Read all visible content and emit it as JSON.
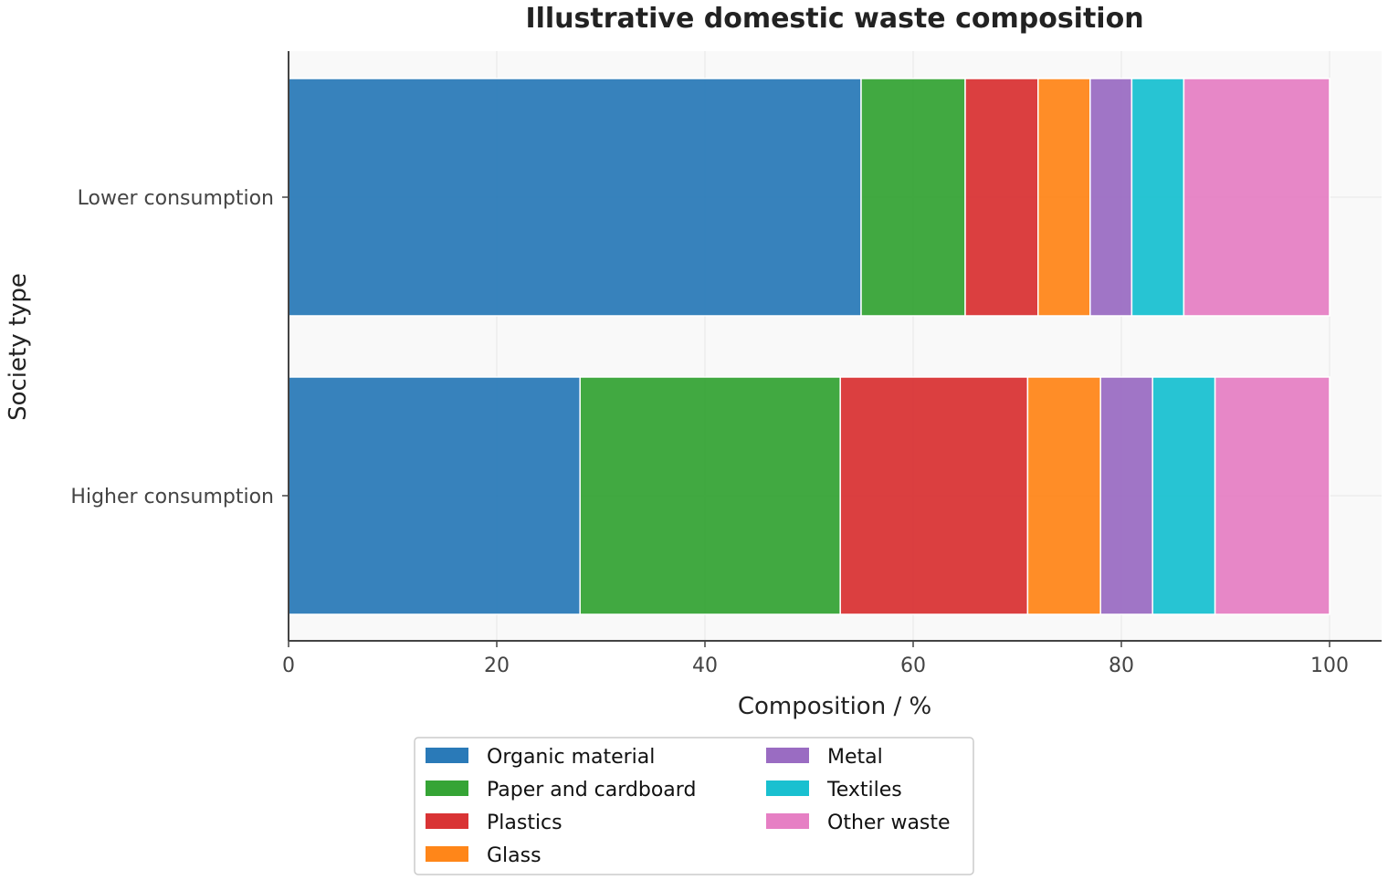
{
  "chart_data": {
    "type": "bar",
    "orientation": "horizontal",
    "stacked": true,
    "title": "Illustrative domestic waste composition",
    "xlabel": "Composition / %",
    "ylabel": "Society type",
    "xlim": [
      0,
      105
    ],
    "xticks": [
      0,
      20,
      40,
      60,
      80,
      100
    ],
    "grid": true,
    "legend_position": "bottom-center",
    "categories": [
      "Lower consumption",
      "Higher consumption"
    ],
    "series": [
      {
        "name": "Organic material",
        "color": "#2a7ab8",
        "values": [
          55,
          28
        ]
      },
      {
        "name": "Paper and cardboard",
        "color": "#35a435",
        "values": [
          10,
          25
        ]
      },
      {
        "name": "Plastics",
        "color": "#d93334",
        "values": [
          7,
          18
        ]
      },
      {
        "name": "Glass",
        "color": "#ff8619",
        "values": [
          5,
          7
        ]
      },
      {
        "name": "Metal",
        "color": "#9a6cc2",
        "values": [
          4,
          5
        ]
      },
      {
        "name": "Textiles",
        "color": "#19c0d0",
        "values": [
          5,
          6
        ]
      },
      {
        "name": "Other waste",
        "color": "#e67fc4",
        "values": [
          14,
          11
        ]
      }
    ]
  }
}
